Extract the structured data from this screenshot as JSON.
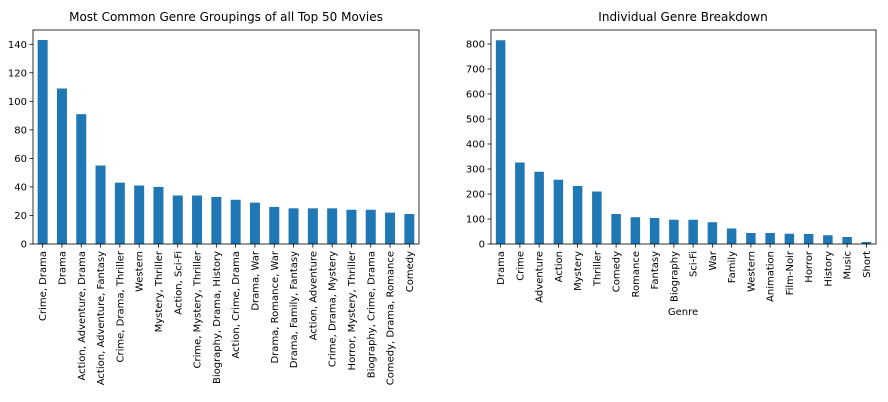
{
  "colors": {
    "bar": "#1f77b4",
    "axis": "#000000",
    "background": "#ffffff"
  },
  "chart_data": [
    {
      "type": "bar",
      "title": "Most Common Genre Groupings of all Top 50 Movies",
      "xlabel": "",
      "ylabel": "",
      "categories": [
        "Crime, Drama",
        "Drama",
        "Action, Adventure, Drama",
        "Action, Adventure, Fantasy",
        "Crime, Drama, Thriller",
        "Western",
        "Mystery, Thriller",
        "Action, Sci-Fi",
        "Crime, Mystery, Thriller",
        "Biography, Drama, History",
        "Action, Crime, Drama",
        "Drama, War",
        "Drama, Romance, War",
        "Drama, Family, Fantasy",
        "Action, Adventure",
        "Crime, Drama, Mystery",
        "Horror, Mystery, Thriller",
        "Biography, Crime, Drama",
        "Comedy, Drama, Romance",
        "Comedy"
      ],
      "values": [
        143,
        109,
        91,
        55,
        43,
        41,
        40,
        34,
        34,
        33,
        31,
        29,
        26,
        25,
        25,
        25,
        24,
        24,
        22,
        21
      ],
      "ylim": [
        0,
        150
      ],
      "yticks": [
        0,
        20,
        40,
        60,
        80,
        100,
        120,
        140
      ],
      "grid": false
    },
    {
      "type": "bar",
      "title": "Individual Genre Breakdown",
      "xlabel": "Genre",
      "ylabel": "",
      "categories": [
        "Drama",
        "Crime",
        "Adventure",
        "Action",
        "Mystery",
        "Thriller",
        "Comedy",
        "Romance",
        "Fantasy",
        "Biography",
        "Sci-Fi",
        "War",
        "Family",
        "Western",
        "Animation",
        "Film-Noir",
        "Horror",
        "History",
        "Music",
        "Short"
      ],
      "values": [
        815,
        326,
        289,
        257,
        232,
        210,
        120,
        107,
        104,
        97,
        97,
        87,
        62,
        44,
        44,
        41,
        40,
        35,
        28,
        8
      ],
      "ylim": [
        0,
        856
      ],
      "yticks": [
        0,
        100,
        200,
        300,
        400,
        500,
        600,
        700,
        800
      ],
      "grid": false
    }
  ]
}
